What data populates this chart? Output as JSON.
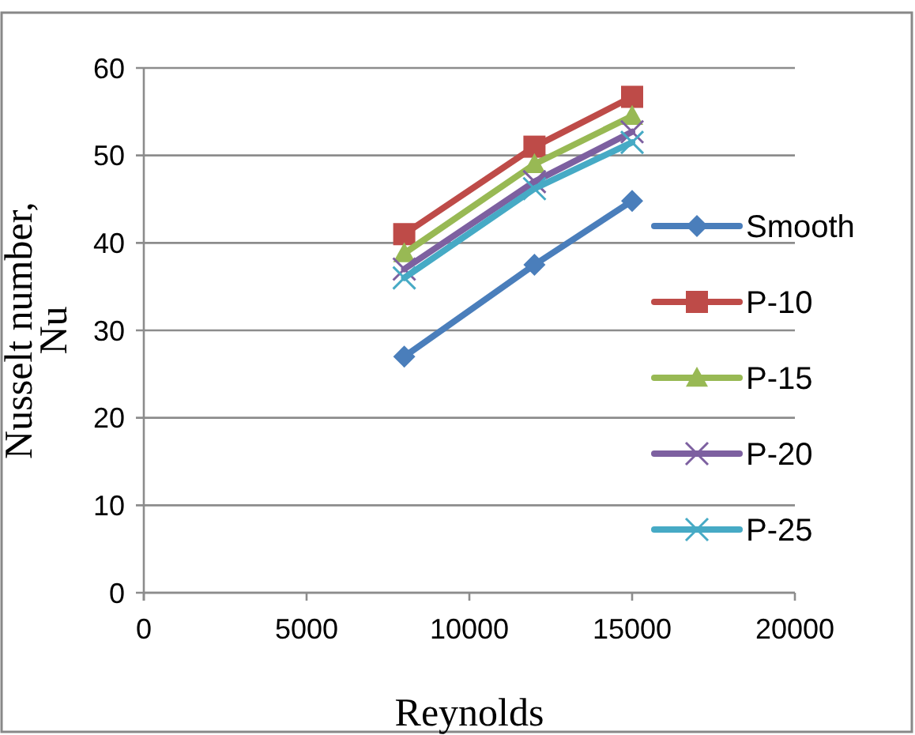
{
  "chart_data": {
    "type": "line",
    "xlabel": "Reynolds",
    "ylabel": "Nusselt number, Nu",
    "x": [
      8000,
      12000,
      15000
    ],
    "series": [
      {
        "name": "Smooth",
        "color": "#4a7ebb",
        "marker": "diamond",
        "values": [
          27,
          37.5,
          44.8
        ]
      },
      {
        "name": "P-10",
        "color": "#be4b48",
        "marker": "square",
        "values": [
          41,
          51,
          56.7
        ]
      },
      {
        "name": "P-15",
        "color": "#98b954",
        "marker": "triangle",
        "values": [
          38.8,
          49,
          54.5
        ]
      },
      {
        "name": "P-20",
        "color": "#7d60a0",
        "marker": "cross",
        "values": [
          37,
          47,
          52.7
        ]
      },
      {
        "name": "P-25",
        "color": "#46aac5",
        "marker": "cross",
        "values": [
          36,
          46.2,
          51.5
        ]
      }
    ],
    "xlim": [
      0,
      20000
    ],
    "xticks": [
      0,
      5000,
      10000,
      15000,
      20000
    ],
    "ylim": [
      0,
      60
    ],
    "yticks": [
      0,
      10,
      20,
      30,
      40,
      50,
      60
    ],
    "grid": "y",
    "legend": "right"
  }
}
